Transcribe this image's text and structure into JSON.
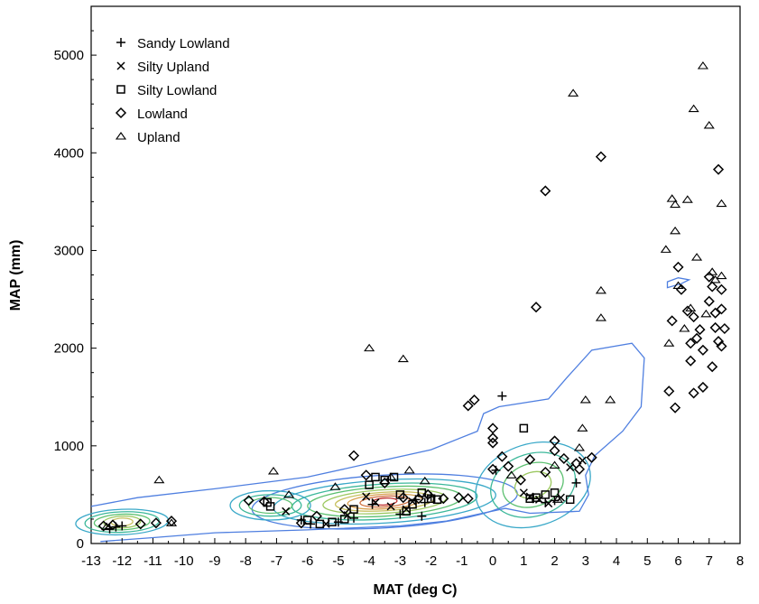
{
  "chart_data": {
    "type": "scatter",
    "xlabel": "MAT (deg C)",
    "ylabel": "MAP (mm)",
    "xlim": [
      -13,
      8
    ],
    "ylim": [
      0,
      5500
    ],
    "xticks": [
      -13,
      -12,
      -11,
      -10,
      -9,
      -8,
      -7,
      -6,
      -5,
      -4,
      -3,
      -2,
      -1,
      0,
      1,
      2,
      3,
      4,
      5,
      6,
      7,
      8
    ],
    "yticks": [
      0,
      1000,
      2000,
      3000,
      4000,
      5000
    ],
    "grid": false,
    "legend_position": "top-left",
    "density_contours": {
      "description_colors": [
        "#4f7fe0",
        "#39a8c8",
        "#3cb89a",
        "#5cc070",
        "#9cc860",
        "#c8c060",
        "#d8a050",
        "#d07040",
        "#c03030"
      ]
    },
    "series": [
      {
        "name": "Sandy Lowland",
        "marker": "plus",
        "points": [
          [
            0.3,
            1510
          ],
          [
            -12.2,
            170
          ],
          [
            -12.4,
            150
          ],
          [
            -12.0,
            180
          ],
          [
            -5.9,
            200
          ],
          [
            -5.0,
            220
          ],
          [
            -4.5,
            260
          ],
          [
            -3.0,
            300
          ],
          [
            -2.3,
            280
          ],
          [
            -2.2,
            420
          ],
          [
            -2.5,
            450
          ],
          [
            -2.0,
            480
          ],
          [
            1.3,
            460
          ],
          [
            1.7,
            420
          ],
          [
            2.0,
            440
          ],
          [
            2.7,
            620
          ],
          [
            0.1,
            750
          ],
          [
            -6.2,
            240
          ],
          [
            -3.9,
            400
          ]
        ]
      },
      {
        "name": "Silty Upland",
        "marker": "x",
        "points": [
          [
            -6.7,
            330
          ],
          [
            -5.4,
            200
          ],
          [
            -4.7,
            290
          ],
          [
            -3.8,
            420
          ],
          [
            -3.3,
            380
          ],
          [
            -2.6,
            430
          ],
          [
            -2.8,
            350
          ],
          [
            1.0,
            520
          ],
          [
            1.2,
            480
          ],
          [
            1.5,
            450
          ],
          [
            1.8,
            410
          ],
          [
            2.2,
            470
          ],
          [
            2.5,
            780
          ],
          [
            2.9,
            850
          ],
          [
            -4.1,
            480
          ]
        ]
      },
      {
        "name": "Silty Lowland",
        "marker": "square",
        "points": [
          [
            -7.3,
            420
          ],
          [
            -7.2,
            380
          ],
          [
            -6.0,
            240
          ],
          [
            -5.6,
            200
          ],
          [
            -5.2,
            220
          ],
          [
            -4.8,
            250
          ],
          [
            -4.5,
            350
          ],
          [
            -4.0,
            600
          ],
          [
            -3.8,
            680
          ],
          [
            -3.5,
            650
          ],
          [
            -3.2,
            680
          ],
          [
            -3.0,
            500
          ],
          [
            -2.8,
            330
          ],
          [
            -2.6,
            400
          ],
          [
            -2.3,
            520
          ],
          [
            -2.0,
            460
          ],
          [
            -1.8,
            450
          ],
          [
            1.0,
            1180
          ],
          [
            1.2,
            460
          ],
          [
            1.4,
            470
          ],
          [
            1.7,
            500
          ],
          [
            2.0,
            520
          ],
          [
            2.5,
            450
          ]
        ]
      },
      {
        "name": "Lowland",
        "marker": "diamond",
        "points": [
          [
            -12.6,
            180
          ],
          [
            -12.3,
            190
          ],
          [
            -11.4,
            200
          ],
          [
            -10.9,
            210
          ],
          [
            -10.4,
            230
          ],
          [
            -7.9,
            440
          ],
          [
            -7.4,
            430
          ],
          [
            -6.2,
            210
          ],
          [
            -5.7,
            280
          ],
          [
            -4.8,
            350
          ],
          [
            -4.5,
            900
          ],
          [
            -4.1,
            700
          ],
          [
            -3.5,
            620
          ],
          [
            -2.9,
            470
          ],
          [
            -2.4,
            460
          ],
          [
            -2.1,
            500
          ],
          [
            -1.6,
            460
          ],
          [
            -1.1,
            470
          ],
          [
            -0.8,
            460
          ],
          [
            -0.8,
            1410
          ],
          [
            -0.6,
            1470
          ],
          [
            0.0,
            1180
          ],
          [
            0.0,
            1080
          ],
          [
            0.0,
            1030
          ],
          [
            0.0,
            760
          ],
          [
            0.3,
            890
          ],
          [
            0.5,
            790
          ],
          [
            0.9,
            650
          ],
          [
            1.2,
            860
          ],
          [
            1.4,
            2420
          ],
          [
            1.7,
            3610
          ],
          [
            1.7,
            730
          ],
          [
            2.0,
            1050
          ],
          [
            2.0,
            950
          ],
          [
            2.3,
            870
          ],
          [
            2.7,
            820
          ],
          [
            2.8,
            760
          ],
          [
            3.2,
            880
          ],
          [
            3.5,
            3960
          ],
          [
            5.8,
            2280
          ],
          [
            5.9,
            1390
          ],
          [
            5.7,
            1560
          ],
          [
            6.0,
            2830
          ],
          [
            6.1,
            2600
          ],
          [
            6.3,
            2380
          ],
          [
            6.4,
            2050
          ],
          [
            6.4,
            1870
          ],
          [
            6.5,
            1540
          ],
          [
            6.5,
            2320
          ],
          [
            6.6,
            2100
          ],
          [
            6.7,
            2190
          ],
          [
            6.8,
            1600
          ],
          [
            6.8,
            1980
          ],
          [
            7.0,
            2480
          ],
          [
            7.0,
            2730
          ],
          [
            7.1,
            2630
          ],
          [
            7.1,
            1810
          ],
          [
            7.2,
            2210
          ],
          [
            7.2,
            2360
          ],
          [
            7.3,
            3830
          ],
          [
            7.3,
            2070
          ],
          [
            7.4,
            2600
          ],
          [
            7.4,
            2400
          ],
          [
            7.4,
            2020
          ],
          [
            7.5,
            2200
          ]
        ]
      },
      {
        "name": "Upland",
        "marker": "triangle",
        "points": [
          [
            -12.5,
            170
          ],
          [
            -10.8,
            650
          ],
          [
            -10.4,
            210
          ],
          [
            -7.1,
            740
          ],
          [
            -6.6,
            500
          ],
          [
            -5.1,
            580
          ],
          [
            -4.0,
            2000
          ],
          [
            -3.3,
            680
          ],
          [
            -2.9,
            1890
          ],
          [
            -2.7,
            750
          ],
          [
            -2.2,
            640
          ],
          [
            0.6,
            700
          ],
          [
            2.0,
            800
          ],
          [
            2.1,
            450
          ],
          [
            2.6,
            4610
          ],
          [
            2.8,
            980
          ],
          [
            2.9,
            1180
          ],
          [
            3.0,
            1470
          ],
          [
            3.5,
            2590
          ],
          [
            3.5,
            2310
          ],
          [
            3.8,
            1470
          ],
          [
            5.6,
            3010
          ],
          [
            5.8,
            3530
          ],
          [
            5.9,
            3470
          ],
          [
            5.9,
            3200
          ],
          [
            6.0,
            2640
          ],
          [
            6.2,
            2200
          ],
          [
            6.3,
            3520
          ],
          [
            6.4,
            2410
          ],
          [
            6.5,
            4450
          ],
          [
            6.6,
            2930
          ],
          [
            6.8,
            4890
          ],
          [
            6.9,
            2350
          ],
          [
            7.0,
            4280
          ],
          [
            7.1,
            2780
          ],
          [
            7.2,
            2700
          ],
          [
            7.4,
            3480
          ],
          [
            7.4,
            2740
          ],
          [
            5.7,
            2050
          ]
        ]
      }
    ]
  }
}
